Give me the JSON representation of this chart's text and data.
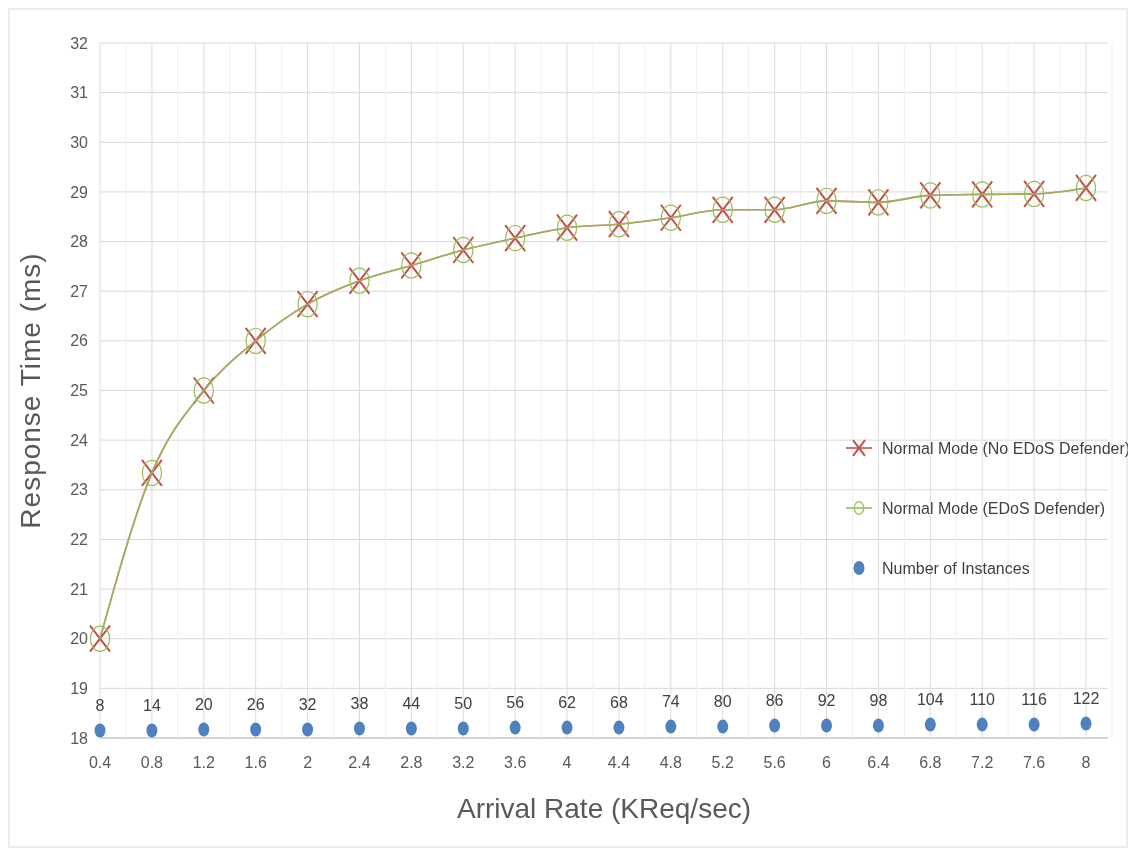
{
  "chart_data": {
    "type": "line",
    "xlabel": "Arrival Rate (KReq/sec)",
    "ylabel": "Response Time (ms)",
    "categories": [
      "0.4",
      "0.8",
      "1.2",
      "1.6",
      "2",
      "2.4",
      "2.8",
      "3.2",
      "3.6",
      "4",
      "4.4",
      "4.8",
      "5.2",
      "5.6",
      "6",
      "6.4",
      "6.8",
      "7.2",
      "7.6",
      "8"
    ],
    "series": [
      {
        "name": "Normal Mode (No EDoS Defender)",
        "color": "#c0504d",
        "marker": "cross",
        "values": [
          20.0,
          23.34,
          25.0,
          26.0,
          26.74,
          27.21,
          27.52,
          27.83,
          28.07,
          28.28,
          28.35,
          28.48,
          28.64,
          28.64,
          28.82,
          28.79,
          28.93,
          28.95,
          28.96,
          29.08
        ]
      },
      {
        "name": "Normal Mode (EDoS Defender)",
        "color": "#9bbb59",
        "marker": "circle",
        "values": [
          20.0,
          23.34,
          25.0,
          26.0,
          26.74,
          27.21,
          27.52,
          27.83,
          28.07,
          28.28,
          28.35,
          28.48,
          28.64,
          28.64,
          28.82,
          28.79,
          28.93,
          28.95,
          28.96,
          29.08
        ]
      },
      {
        "name": "Number of Instances",
        "type": "scatter",
        "color": "#4f81bd",
        "marker": "circle",
        "values": [
          18.15,
          18.15,
          18.17,
          18.17,
          18.17,
          18.19,
          18.19,
          18.19,
          18.21,
          18.21,
          18.21,
          18.23,
          18.23,
          18.25,
          18.25,
          18.25,
          18.27,
          18.27,
          18.27,
          18.29
        ]
      }
    ],
    "annotations": [
      {
        "text": "8",
        "x": "0.4",
        "y": 18.15
      },
      {
        "text": "14",
        "x": "0.8",
        "y": 18.15
      },
      {
        "text": "20",
        "x": "1.2",
        "y": 18.17
      },
      {
        "text": "26",
        "x": "1.6",
        "y": 18.17
      },
      {
        "text": "32",
        "x": "2",
        "y": 18.17
      },
      {
        "text": "38",
        "x": "2.4",
        "y": 18.19
      },
      {
        "text": "44",
        "x": "2.8",
        "y": 18.19
      },
      {
        "text": "50",
        "x": "3.2",
        "y": 18.19
      },
      {
        "text": "56",
        "x": "3.6",
        "y": 18.21
      },
      {
        "text": "62",
        "x": "4",
        "y": 18.21
      },
      {
        "text": "68",
        "x": "4.4",
        "y": 18.21
      },
      {
        "text": "74",
        "x": "4.8",
        "y": 18.23
      },
      {
        "text": "80",
        "x": "5.2",
        "y": 18.23
      },
      {
        "text": "86",
        "x": "5.6",
        "y": 18.25
      },
      {
        "text": "92",
        "x": "6",
        "y": 18.25
      },
      {
        "text": "98",
        "x": "6.4",
        "y": 18.25
      },
      {
        "text": "104",
        "x": "6.8",
        "y": 18.27
      },
      {
        "text": "110",
        "x": "7.2",
        "y": 18.27
      },
      {
        "text": "116",
        "x": "7.6",
        "y": 18.27
      },
      {
        "text": "122",
        "x": "8",
        "y": 18.29
      }
    ],
    "ylim": [
      18,
      32
    ],
    "yticks": [
      18,
      19,
      20,
      21,
      22,
      23,
      24,
      25,
      26,
      27,
      28,
      29,
      30,
      31,
      32
    ],
    "grid": true,
    "legend": "right"
  }
}
